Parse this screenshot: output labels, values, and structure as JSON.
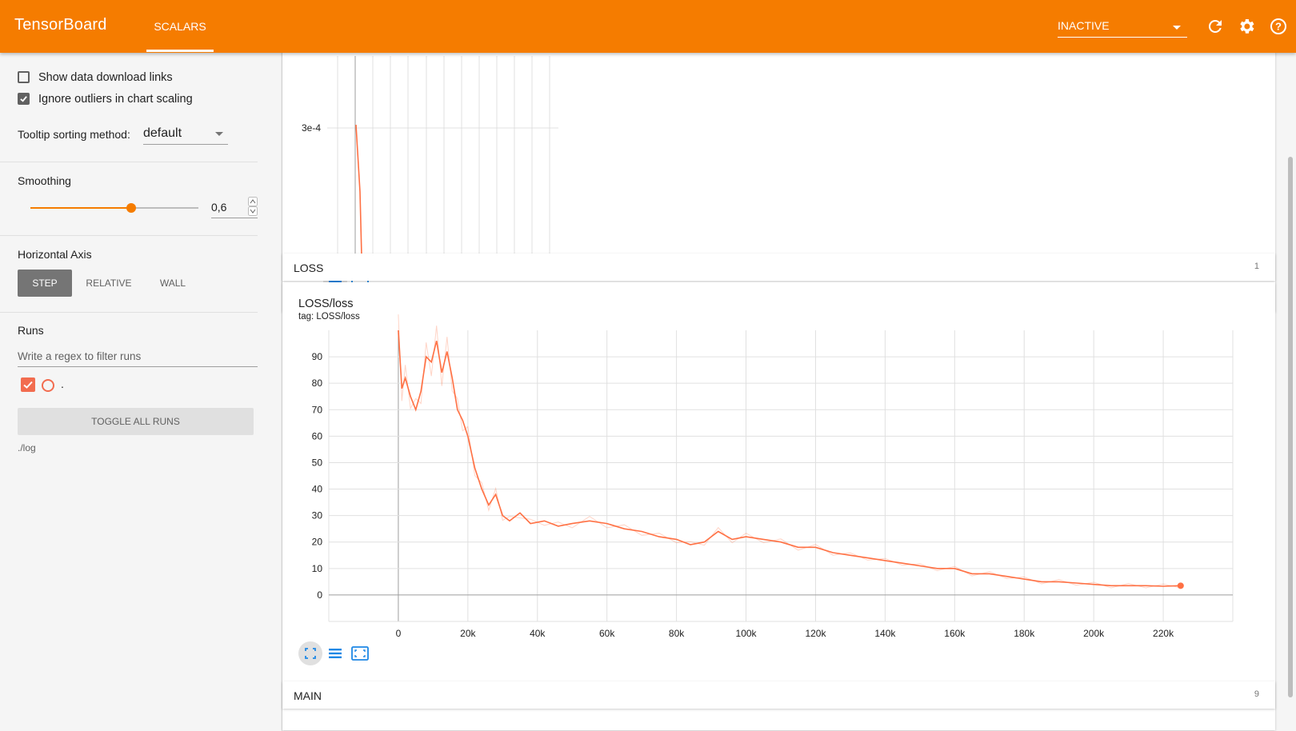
{
  "app": {
    "title": "TensorBoard",
    "active_tab": "SCALARS",
    "status_select": "INACTIVE"
  },
  "sidebar": {
    "show_download_links": {
      "label": "Show data download links",
      "checked": false
    },
    "ignore_outliers": {
      "label": "Ignore outliers in chart scaling",
      "checked": true
    },
    "tooltip_sorting": {
      "label": "Tooltip sorting method:",
      "value": "default"
    },
    "smoothing": {
      "label": "Smoothing",
      "value": "0,6",
      "fraction": 0.6
    },
    "horizontal_axis": {
      "label": "Horizontal Axis",
      "options": [
        "STEP",
        "RELATIVE",
        "WALL"
      ],
      "selected": "STEP"
    },
    "runs": {
      "label": "Runs",
      "filter_placeholder": "Write a regex to filter runs",
      "run_name": ".",
      "toggle_all": "TOGGLE ALL RUNS",
      "logdir": "./log"
    }
  },
  "colors": {
    "brand": "#f57c00",
    "series": "#ff7043",
    "accent_blue": "#1e88e5"
  },
  "groups": [
    {
      "name": "LOSS",
      "count": "1"
    },
    {
      "name": "MAIN",
      "count": "9"
    }
  ],
  "top_chart": {
    "y_tick": "3e-4"
  },
  "loss_card": {
    "title": "LOSS/loss",
    "tag": "tag: LOSS/loss"
  },
  "chart_data": {
    "type": "line",
    "title": "LOSS/loss",
    "xlabel": "",
    "ylabel": "",
    "x_ticks": [
      "0",
      "20k",
      "40k",
      "60k",
      "80k",
      "100k",
      "120k",
      "140k",
      "160k",
      "180k",
      "200k",
      "220k"
    ],
    "y_ticks": [
      "0",
      "10",
      "20",
      "30",
      "40",
      "50",
      "60",
      "70",
      "80",
      "90"
    ],
    "xlim": [
      -20000,
      240000
    ],
    "ylim": [
      -10,
      100
    ],
    "grid": true,
    "series": [
      {
        "name": ".",
        "x": [
          0,
          1000,
          2000,
          3500,
          5000,
          6500,
          8000,
          9500,
          11000,
          12500,
          14000,
          15500,
          17000,
          18500,
          20000,
          22000,
          24000,
          26000,
          28000,
          30000,
          32000,
          35000,
          38000,
          42000,
          46000,
          50000,
          55000,
          60000,
          65000,
          70000,
          75000,
          80000,
          84000,
          88000,
          92000,
          96000,
          100000,
          105000,
          110000,
          115000,
          120000,
          125000,
          130000,
          135000,
          140000,
          145000,
          150000,
          155000,
          160000,
          165000,
          170000,
          175000,
          180000,
          185000,
          190000,
          195000,
          200000,
          205000,
          210000,
          215000,
          220000,
          225000
        ],
        "values": [
          100,
          78,
          82,
          75,
          70,
          77,
          90,
          88,
          96,
          84,
          92,
          82,
          70,
          66,
          60,
          48,
          40,
          34,
          38,
          30,
          28,
          31,
          27,
          28,
          26,
          27,
          28,
          27,
          25,
          24,
          22,
          21,
          19,
          20,
          24,
          21,
          22,
          21,
          20,
          18,
          18,
          16,
          15,
          14,
          13,
          12,
          11,
          10,
          10,
          8,
          8,
          7,
          6,
          5,
          5,
          4.5,
          4,
          3.5,
          3.5,
          3.5,
          3.3,
          3.5
        ]
      }
    ]
  }
}
